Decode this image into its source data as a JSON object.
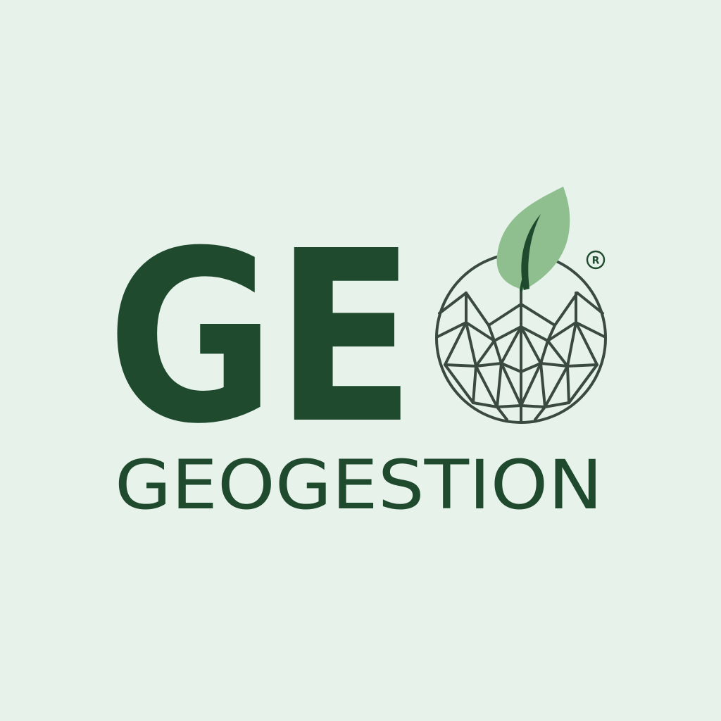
{
  "logo": {
    "mark_text": "GE",
    "wordmark": "GEOGESTION",
    "registered_symbol": "R",
    "icon_names": [
      "leaf-icon",
      "geodesic-globe-icon",
      "registered-trademark-icon"
    ]
  },
  "colors": {
    "background": "#e6f2ea",
    "primary_green": "#1f4a2e",
    "leaf_green": "#8fbf8f",
    "globe_line": "#3a4a40"
  }
}
